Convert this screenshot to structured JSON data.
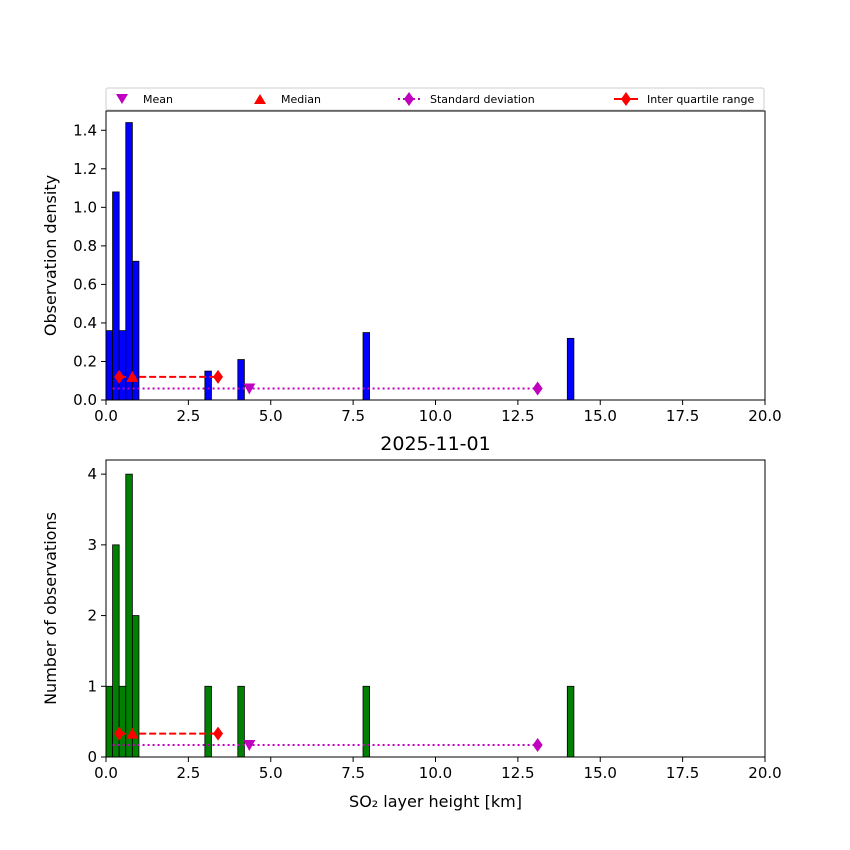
{
  "legend": {
    "items": [
      {
        "label": "Mean",
        "marker": "triangle-down",
        "color": "#bf00bf"
      },
      {
        "label": "Median",
        "marker": "triangle-up",
        "color": "#ff0000"
      },
      {
        "label": "Standard deviation",
        "marker": "diamond-dotted-line",
        "color": "#bf00bf"
      },
      {
        "label": "Inter quartile range",
        "marker": "diamond-dashed-line",
        "color": "#ff0000"
      }
    ]
  },
  "chart_data": [
    {
      "type": "bar",
      "title": "",
      "xlabel": "",
      "ylabel": "Observation density",
      "xlim": [
        0,
        20
      ],
      "ylim": [
        0,
        1.5
      ],
      "xticks": [
        "0.0",
        "2.5",
        "5.0",
        "7.5",
        "10.0",
        "12.5",
        "15.0",
        "17.5",
        "20.0"
      ],
      "yticks": [
        "0.0",
        "0.2",
        "0.4",
        "0.6",
        "0.8",
        "1.0",
        "1.2",
        "1.4"
      ],
      "bar_color": "#0000ff",
      "bins": [
        {
          "x0": 0.0,
          "x1": 0.2,
          "value": 0.36
        },
        {
          "x0": 0.2,
          "x1": 0.4,
          "value": 1.08
        },
        {
          "x0": 0.4,
          "x1": 0.6,
          "value": 0.36
        },
        {
          "x0": 0.6,
          "x1": 0.8,
          "value": 1.44
        },
        {
          "x0": 0.8,
          "x1": 1.0,
          "value": 0.72
        },
        {
          "x0": 3.0,
          "x1": 3.2,
          "value": 0.15
        },
        {
          "x0": 4.0,
          "x1": 4.2,
          "value": 0.21
        },
        {
          "x0": 7.8,
          "x1": 8.0,
          "value": 0.35
        },
        {
          "x0": 14.0,
          "x1": 14.2,
          "value": 0.32
        }
      ],
      "statistics": {
        "mean": {
          "x": 4.35,
          "y": 0.06
        },
        "median": {
          "x": 0.8,
          "y": 0.12
        },
        "standard_deviation": {
          "x": [
            0.2,
            13.1
          ],
          "y": 0.06
        },
        "inter_quartile_range": {
          "x": [
            0.4,
            3.4
          ],
          "y": 0.12
        }
      },
      "legend_position": "top"
    },
    {
      "type": "bar",
      "title": "2025-11-01",
      "xlabel": "SO₂ layer height [km]",
      "ylabel": "Number of observations",
      "xlim": [
        0,
        20
      ],
      "ylim": [
        0,
        4.2
      ],
      "xticks": [
        "0.0",
        "2.5",
        "5.0",
        "7.5",
        "10.0",
        "12.5",
        "15.0",
        "17.5",
        "20.0"
      ],
      "yticks": [
        "0",
        "1",
        "2",
        "3",
        "4"
      ],
      "bar_color": "#008000",
      "bins": [
        {
          "x0": 0.0,
          "x1": 0.2,
          "value": 1
        },
        {
          "x0": 0.2,
          "x1": 0.4,
          "value": 3
        },
        {
          "x0": 0.4,
          "x1": 0.6,
          "value": 1
        },
        {
          "x0": 0.6,
          "x1": 0.8,
          "value": 4
        },
        {
          "x0": 0.8,
          "x1": 1.0,
          "value": 2
        },
        {
          "x0": 3.0,
          "x1": 3.2,
          "value": 1
        },
        {
          "x0": 4.0,
          "x1": 4.2,
          "value": 1
        },
        {
          "x0": 7.8,
          "x1": 8.0,
          "value": 1
        },
        {
          "x0": 14.0,
          "x1": 14.2,
          "value": 1
        }
      ],
      "statistics": {
        "mean": {
          "x": 4.35,
          "y": 0.17
        },
        "median": {
          "x": 0.8,
          "y": 0.33
        },
        "standard_deviation": {
          "x": [
            0.2,
            13.1
          ],
          "y": 0.17
        },
        "inter_quartile_range": {
          "x": [
            0.4,
            3.4
          ],
          "y": 0.33
        }
      }
    }
  ]
}
